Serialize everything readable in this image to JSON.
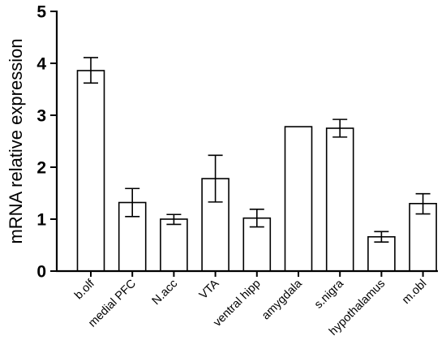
{
  "chart_data": {
    "type": "bar",
    "title": "",
    "xlabel": "",
    "ylabel": "mRNA relative expression",
    "ylim": [
      0,
      5
    ],
    "yticks": [
      "0",
      "1",
      "2",
      "3",
      "4",
      "5"
    ],
    "grid": false,
    "categories": [
      "b.olf",
      "medial PFC",
      "N.acc",
      "VTA",
      "ventral hipp",
      "amygdala",
      "s.nigra",
      "hypothalamus",
      "m.obl"
    ],
    "values": [
      3.86,
      1.32,
      1.0,
      1.78,
      1.02,
      2.78,
      2.75,
      0.66,
      1.3
    ],
    "error_low": [
      3.62,
      1.05,
      0.9,
      1.33,
      0.85,
      null,
      2.58,
      0.56,
      1.1
    ],
    "error_high": [
      4.11,
      1.59,
      1.09,
      2.23,
      1.19,
      null,
      2.92,
      0.76,
      1.49
    ],
    "colors": {
      "bar_fill": "#ffffff",
      "bar_stroke": "#000000",
      "axis": "#000000"
    }
  }
}
